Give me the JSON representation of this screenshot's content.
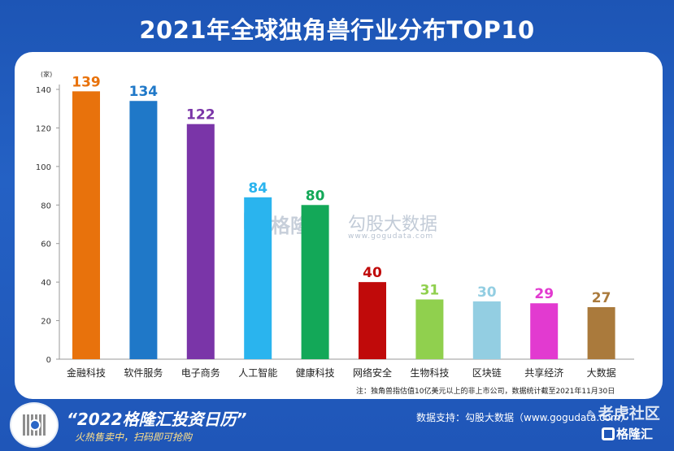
{
  "title": "2021年全球独角兽行业分布TOP10",
  "chart_data": {
    "type": "bar",
    "title": "2021年全球独角兽行业分布TOP10",
    "ylabel": "(家)",
    "ylim": [
      0,
      140
    ],
    "yticks": [
      0,
      20,
      40,
      60,
      80,
      100,
      120,
      140
    ],
    "grid": false,
    "categories": [
      "金融科技",
      "软件服务",
      "电子商务",
      "人工智能",
      "健康科技",
      "网络安全",
      "生物科技",
      "区块链",
      "共享经济",
      "大数据"
    ],
    "values": [
      139,
      134,
      122,
      84,
      80,
      40,
      31,
      30,
      29,
      27
    ],
    "colors": [
      "#e8720c",
      "#1f78c8",
      "#7a35a8",
      "#2ab4ee",
      "#13a858",
      "#c00a0a",
      "#90d04e",
      "#93cee2",
      "#e23ad0",
      "#aa7a3c"
    ]
  },
  "watermark": {
    "brand": "格隆汇",
    "brand2": "勾股大数据",
    "url": "www.gogudata.com"
  },
  "note": "注：独角兽指估值10亿美元以上的非上市公司，数据统计截至2021年11月30日",
  "footer": {
    "promo_title": "“2022格隆汇投资日历”",
    "promo_sub": "火热售卖中，扫码即可抢购",
    "source": "数据支持：勾股大数据（www.gogudata.com）",
    "watermark_tiger": "老虎社区",
    "watermark_glh": "格隆汇"
  }
}
